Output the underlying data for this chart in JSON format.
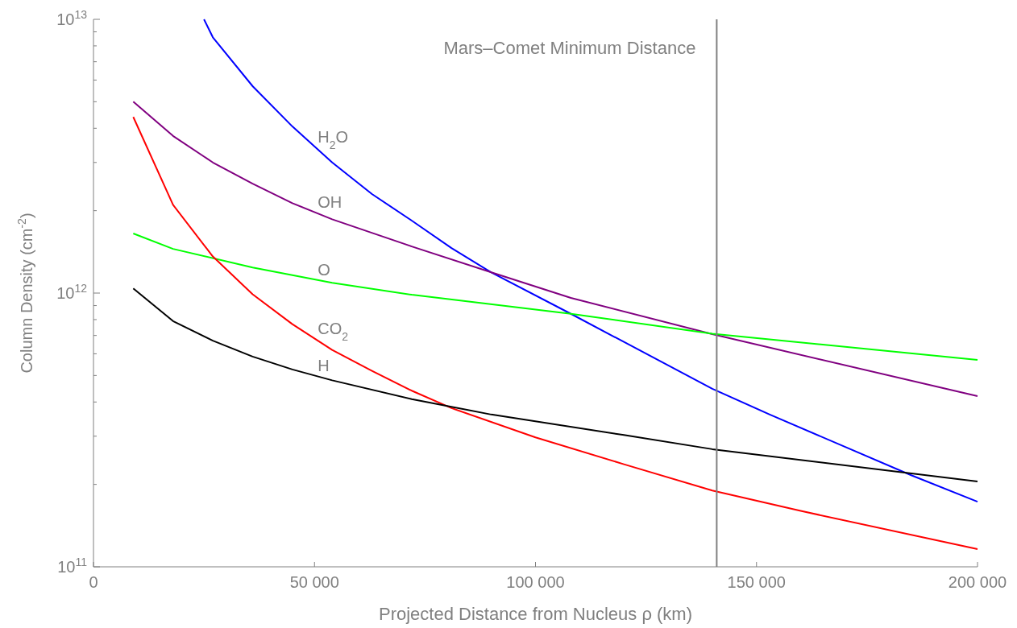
{
  "chart_data": {
    "type": "line",
    "xlabel": "Projected Distance from Nucleus ρ (km)",
    "ylabel": "Column Density (cm$^{-2}$)",
    "log": "y",
    "grid": false,
    "marker": "none",
    "line_style": "solid",
    "xlim": [
      0,
      200000
    ],
    "xticks": [
      0,
      {
        "value": 50000,
        "label": "50 000"
      },
      {
        "value": 100000,
        "label": "100 000"
      },
      {
        "value": 150000,
        "label": "150 000"
      },
      {
        "value": 200000,
        "label": "200 000"
      }
    ],
    "ylim": [
      100000000000,
      10000000000000
    ],
    "yticks": [
      {
        "value": 100000000000,
        "label": "10$^{11}$"
      },
      {
        "value": 200000000000,
        "label": null
      },
      {
        "value": 300000000000,
        "label": null
      },
      {
        "value": 400000000000,
        "label": null
      },
      {
        "value": 500000000000,
        "label": null
      },
      {
        "value": 600000000000,
        "label": null
      },
      {
        "value": 700000000000,
        "label": null
      },
      {
        "value": 800000000000,
        "label": null
      },
      {
        "value": 900000000000,
        "label": null
      },
      {
        "value": 1000000000000,
        "label": "10$^{12}$"
      },
      {
        "value": 2000000000000,
        "label": null
      },
      {
        "value": 3000000000000,
        "label": null
      },
      {
        "value": 4000000000000,
        "label": null
      },
      {
        "value": 5000000000000,
        "label": null
      },
      {
        "value": 6000000000000,
        "label": null
      },
      {
        "value": 7000000000000,
        "label": null
      },
      {
        "value": 8000000000000,
        "label": null
      },
      {
        "value": 9000000000000,
        "label": null
      },
      {
        "value": 10000000000000,
        "label": "10$^{13}$"
      }
    ],
    "series": [
      {
        "name": "H$_{2}$O",
        "color": "#0000ff",
        "x": [
          25000,
          27000,
          36000,
          45000,
          54000,
          63000,
          72000,
          81000,
          90000,
          108000,
          140000,
          153000,
          185000,
          200000
        ],
        "values": [
          10000000000000.0,
          8600000000000.0,
          5700000000000.0,
          4060000000000.0,
          3000000000000.0,
          2300000000000.0,
          1840000000000.0,
          1460000000000.0,
          1190000000000.0,
          840000000000.0,
          447000000000.0,
          360000000000.0,
          216000000000.0,
          173000000000.0
        ]
      },
      {
        "name": "OH",
        "color": "#800080",
        "x": [
          9000,
          18000,
          27000,
          36000,
          45000,
          54000,
          72000,
          90000,
          108000,
          140000,
          200000
        ],
        "values": [
          5000000000000.0,
          3750000000000.0,
          3000000000000.0,
          2510000000000.0,
          2130000000000.0,
          1860000000000.0,
          1480000000000.0,
          1190000000000.0,
          960000000000.0,
          708000000000.0,
          420000000000.0
        ]
      },
      {
        "name": "O",
        "color": "#00ff00",
        "x": [
          9000,
          18000,
          36000,
          54000,
          72000,
          108000,
          140000,
          200000
        ],
        "values": [
          1650000000000.0,
          1450000000000.0,
          1240000000000.0,
          1090000000000.0,
          986000000000.0,
          840000000000.0,
          710000000000.0,
          570000000000.0
        ]
      },
      {
        "name": "CO$_{2}$",
        "color": "#ff0000",
        "x": [
          9000,
          18000,
          27000,
          36000,
          45000,
          54000,
          63000,
          72000,
          81000,
          100000,
          120000,
          140000,
          160000,
          200000
        ],
        "values": [
          4400000000000.0,
          2100000000000.0,
          1360000000000.0,
          990000000000.0,
          770000000000.0,
          620000000000.0,
          520000000000.0,
          440000000000.0,
          380000000000.0,
          297000000000.0,
          237000000000.0,
          190000000000.0,
          160000000000.0,
          116000000000.0
        ]
      },
      {
        "name": "H",
        "color": "#000000",
        "x": [
          9000,
          18000,
          27000,
          36000,
          45000,
          54000,
          72000,
          90000,
          120000,
          140000,
          200000
        ],
        "values": [
          1040000000000.0,
          790000000000.0,
          670000000000.0,
          586000000000.0,
          526000000000.0,
          480000000000.0,
          410000000000.0,
          360000000000.0,
          303000000000.0,
          269000000000.0,
          205000000000.0
        ]
      }
    ],
    "ref_lines": [
      {
        "axis": "x",
        "value": 141000,
        "label": "Mars–Comet Minimum Distance",
        "color": "#808080"
      }
    ]
  }
}
